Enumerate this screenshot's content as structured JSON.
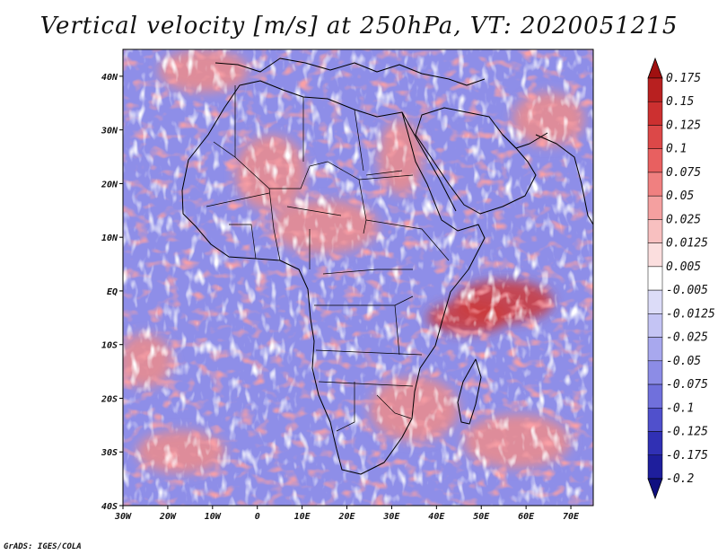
{
  "title": "Vertical velocity [m/s] at 250hPa, VT: 2020051215",
  "credit": "GrADS: IGES/COLA",
  "map": {
    "lon_range": [
      -30,
      75
    ],
    "lat_range": [
      -40,
      45
    ],
    "lon_ticks": [
      "30W",
      "20W",
      "10W",
      "0",
      "10E",
      "20E",
      "30E",
      "40E",
      "50E",
      "60E",
      "70E"
    ],
    "lon_tick_values": [
      -30,
      -20,
      -10,
      0,
      10,
      20,
      30,
      40,
      50,
      60,
      70
    ],
    "lat_ticks": [
      "40N",
      "30N",
      "20N",
      "10N",
      "EQ",
      "10S",
      "20S",
      "30S",
      "40S"
    ],
    "lat_tick_values": [
      40,
      30,
      20,
      10,
      0,
      -10,
      -20,
      -30,
      -40
    ],
    "rising_zones": [
      {
        "lon": 55,
        "lat": -2,
        "rlon": 11,
        "rlat": 4
      },
      {
        "lon": 47,
        "lat": -5,
        "rlon": 9,
        "rlat": 3
      },
      {
        "lon": 32,
        "lat": 25,
        "rlon": 5,
        "rlat": 7
      },
      {
        "lon": 65,
        "lat": 32,
        "rlon": 8,
        "rlat": 5
      },
      {
        "lon": 3,
        "lat": 22,
        "rlon": 8,
        "rlat": 7
      },
      {
        "lon": -12,
        "lat": 41,
        "rlon": 10,
        "rlat": 4
      },
      {
        "lon": 35,
        "lat": -22,
        "rlon": 10,
        "rlat": 6
      },
      {
        "lon": 58,
        "lat": -28,
        "rlon": 12,
        "rlat": 5
      },
      {
        "lon": -25,
        "lat": -13,
        "rlon": 6,
        "rlat": 5
      },
      {
        "lon": -17,
        "lat": -30,
        "rlon": 10,
        "rlat": 4
      },
      {
        "lon": 15,
        "lat": 12,
        "rlon": 12,
        "rlat": 5
      }
    ]
  },
  "colorbar": {
    "labels": [
      "0.175",
      "0.15",
      "0.125",
      "0.1",
      "0.075",
      "0.05",
      "0.025",
      "0.0125",
      "0.005",
      "-0.005",
      "-0.0125",
      "-0.025",
      "-0.05",
      "-0.075",
      "-0.1",
      "-0.125",
      "-0.175",
      "-0.2"
    ],
    "colors": [
      "#a01010",
      "#b82020",
      "#cc3030",
      "#dc4848",
      "#e86060",
      "#f08080",
      "#f4a0a0",
      "#f8c0c0",
      "#fbdede",
      "#ffffff",
      "#dcdcf8",
      "#c4c4f4",
      "#a8a8ee",
      "#8c8ce6",
      "#7070dc",
      "#5050cc",
      "#3030b4",
      "#1e1e9c",
      "#101080"
    ]
  }
}
